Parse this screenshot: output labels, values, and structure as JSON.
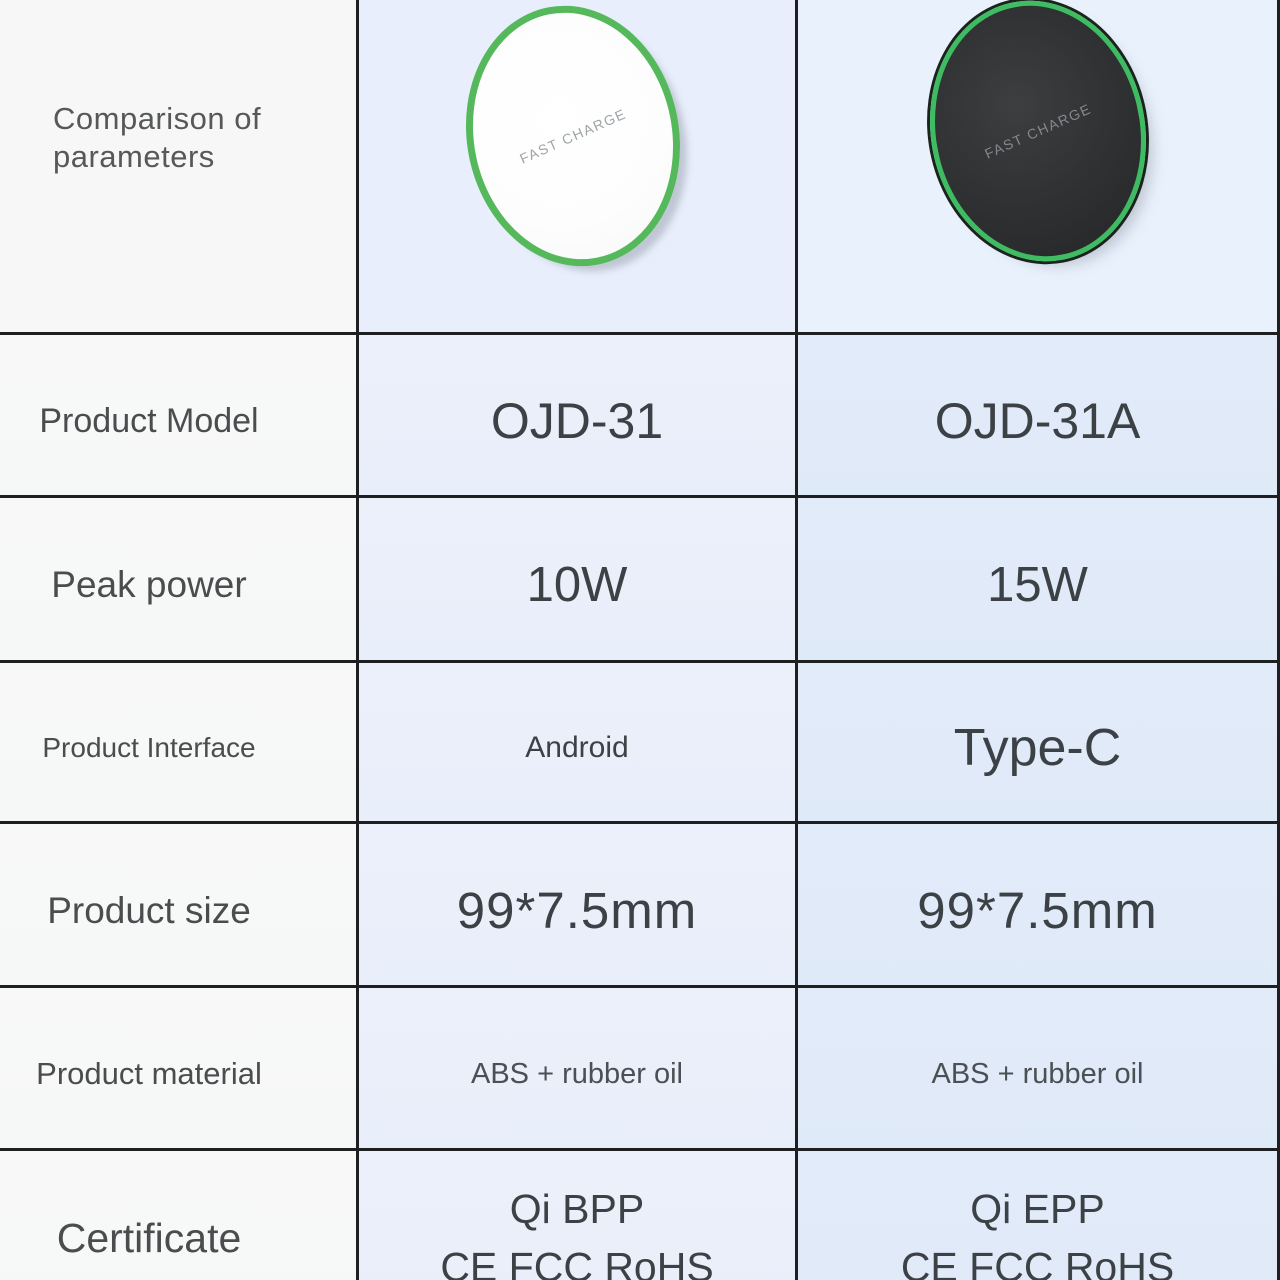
{
  "title": "Comparison of parameters",
  "colors": {
    "grid_line": "#1e1f20",
    "accent_green_ring": "#4dba58",
    "label_column_bg": "#f7f7f7",
    "middle_column_bg": "#eaeffa",
    "right_column_bg": "#e0ebf9"
  },
  "header": {
    "label": "Comparison of parameters",
    "products": [
      {
        "name": "white-wireless-charger",
        "device_text": "FAST CHARGE"
      },
      {
        "name": "black-wireless-charger",
        "device_text": "FAST CHARGE"
      }
    ]
  },
  "rows": [
    {
      "label": "Product Model",
      "v1": "OJD-31",
      "v2": "OJD-31A"
    },
    {
      "label": "Peak power",
      "v1": "10W",
      "v2": "15W"
    },
    {
      "label": "Product Interface",
      "v1": "Android",
      "v2": "Type-C"
    },
    {
      "label": "Product size",
      "v1": "99*7.5mm",
      "v2": "99*7.5mm"
    },
    {
      "label": "Product material",
      "v1": "ABS + rubber oil",
      "v2": "ABS + rubber oil"
    },
    {
      "label": "Certificate",
      "v1": [
        "Qi BPP",
        "CE FCC RoHS"
      ],
      "v2": [
        "Qi EPP",
        "CE FCC RoHS"
      ]
    }
  ]
}
